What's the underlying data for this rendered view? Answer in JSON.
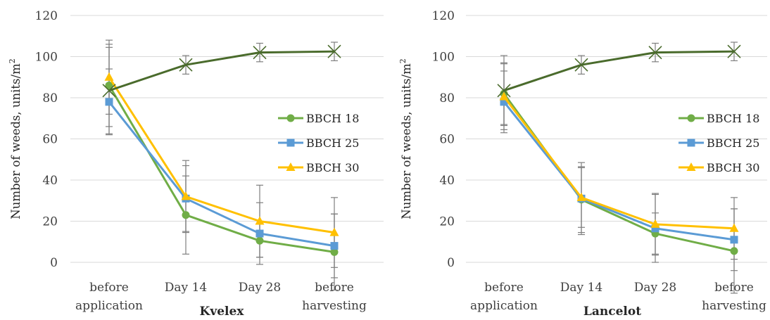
{
  "chart_data": [
    {
      "type": "line",
      "xlabel": "Kvelex",
      "ylabel": "Number of weeds, units/m",
      "ylabel_superscript": "2",
      "ylim": [
        0,
        120
      ],
      "yticks": [
        0,
        20,
        40,
        60,
        80,
        100,
        120
      ],
      "categories": [
        [
          "before",
          "application"
        ],
        [
          "Day 14"
        ],
        [
          "Day 28"
        ],
        [
          "before",
          "harvesting"
        ]
      ],
      "legend_position": "right",
      "grid": true,
      "series": [
        {
          "name": "BBCH 18",
          "color": "#70ad47",
          "marker": "circle",
          "values": [
            86,
            23,
            10.5,
            5
          ],
          "errors": [
            20,
            19,
            8,
            18.5
          ]
        },
        {
          "name": "BBCH 25",
          "color": "#5b9bd5",
          "marker": "square",
          "values": [
            78,
            31,
            14,
            8
          ],
          "errors": [
            16,
            16,
            15,
            15.5
          ]
        },
        {
          "name": "BBCH 30",
          "color": "#ffc000",
          "marker": "triangle",
          "values": [
            90,
            32,
            20,
            14.5
          ],
          "errors": [
            18,
            17.5,
            17.5,
            17
          ]
        },
        {
          "name": "",
          "color": "#4a6b2c",
          "marker": "x",
          "values": [
            83.5,
            96,
            102,
            102.5
          ],
          "errors": [
            21,
            4.5,
            4.5,
            4.5
          ]
        }
      ]
    },
    {
      "type": "line",
      "xlabel": "Lancelot",
      "ylabel": "Number of weeds, units/m",
      "ylabel_superscript": "2",
      "ylim": [
        0,
        120
      ],
      "yticks": [
        0,
        20,
        40,
        60,
        80,
        100,
        120
      ],
      "categories": [
        [
          "before",
          "application"
        ],
        [
          "Day 14"
        ],
        [
          "Day 28"
        ],
        [
          "before",
          "harvesting"
        ]
      ],
      "legend_position": "right",
      "grid": true,
      "series": [
        {
          "name": "BBCH 18",
          "color": "#70ad47",
          "marker": "circle",
          "values": [
            82,
            30.5,
            14,
            5.5
          ],
          "errors": [
            15,
            16,
            10,
            20.5
          ]
        },
        {
          "name": "BBCH 25",
          "color": "#5b9bd5",
          "marker": "square",
          "values": [
            78,
            31,
            16.5,
            11
          ],
          "errors": [
            15,
            17.5,
            16.5,
            15
          ]
        },
        {
          "name": "BBCH 30",
          "color": "#ffc000",
          "marker": "triangle",
          "values": [
            80.5,
            31.5,
            18.5,
            16.5
          ],
          "errors": [
            16,
            14.5,
            15,
            15
          ]
        },
        {
          "name": "",
          "color": "#4a6b2c",
          "marker": "x",
          "values": [
            83.5,
            96,
            102,
            102.5
          ],
          "errors": [
            17,
            4.5,
            4.5,
            4.5
          ]
        }
      ]
    }
  ]
}
